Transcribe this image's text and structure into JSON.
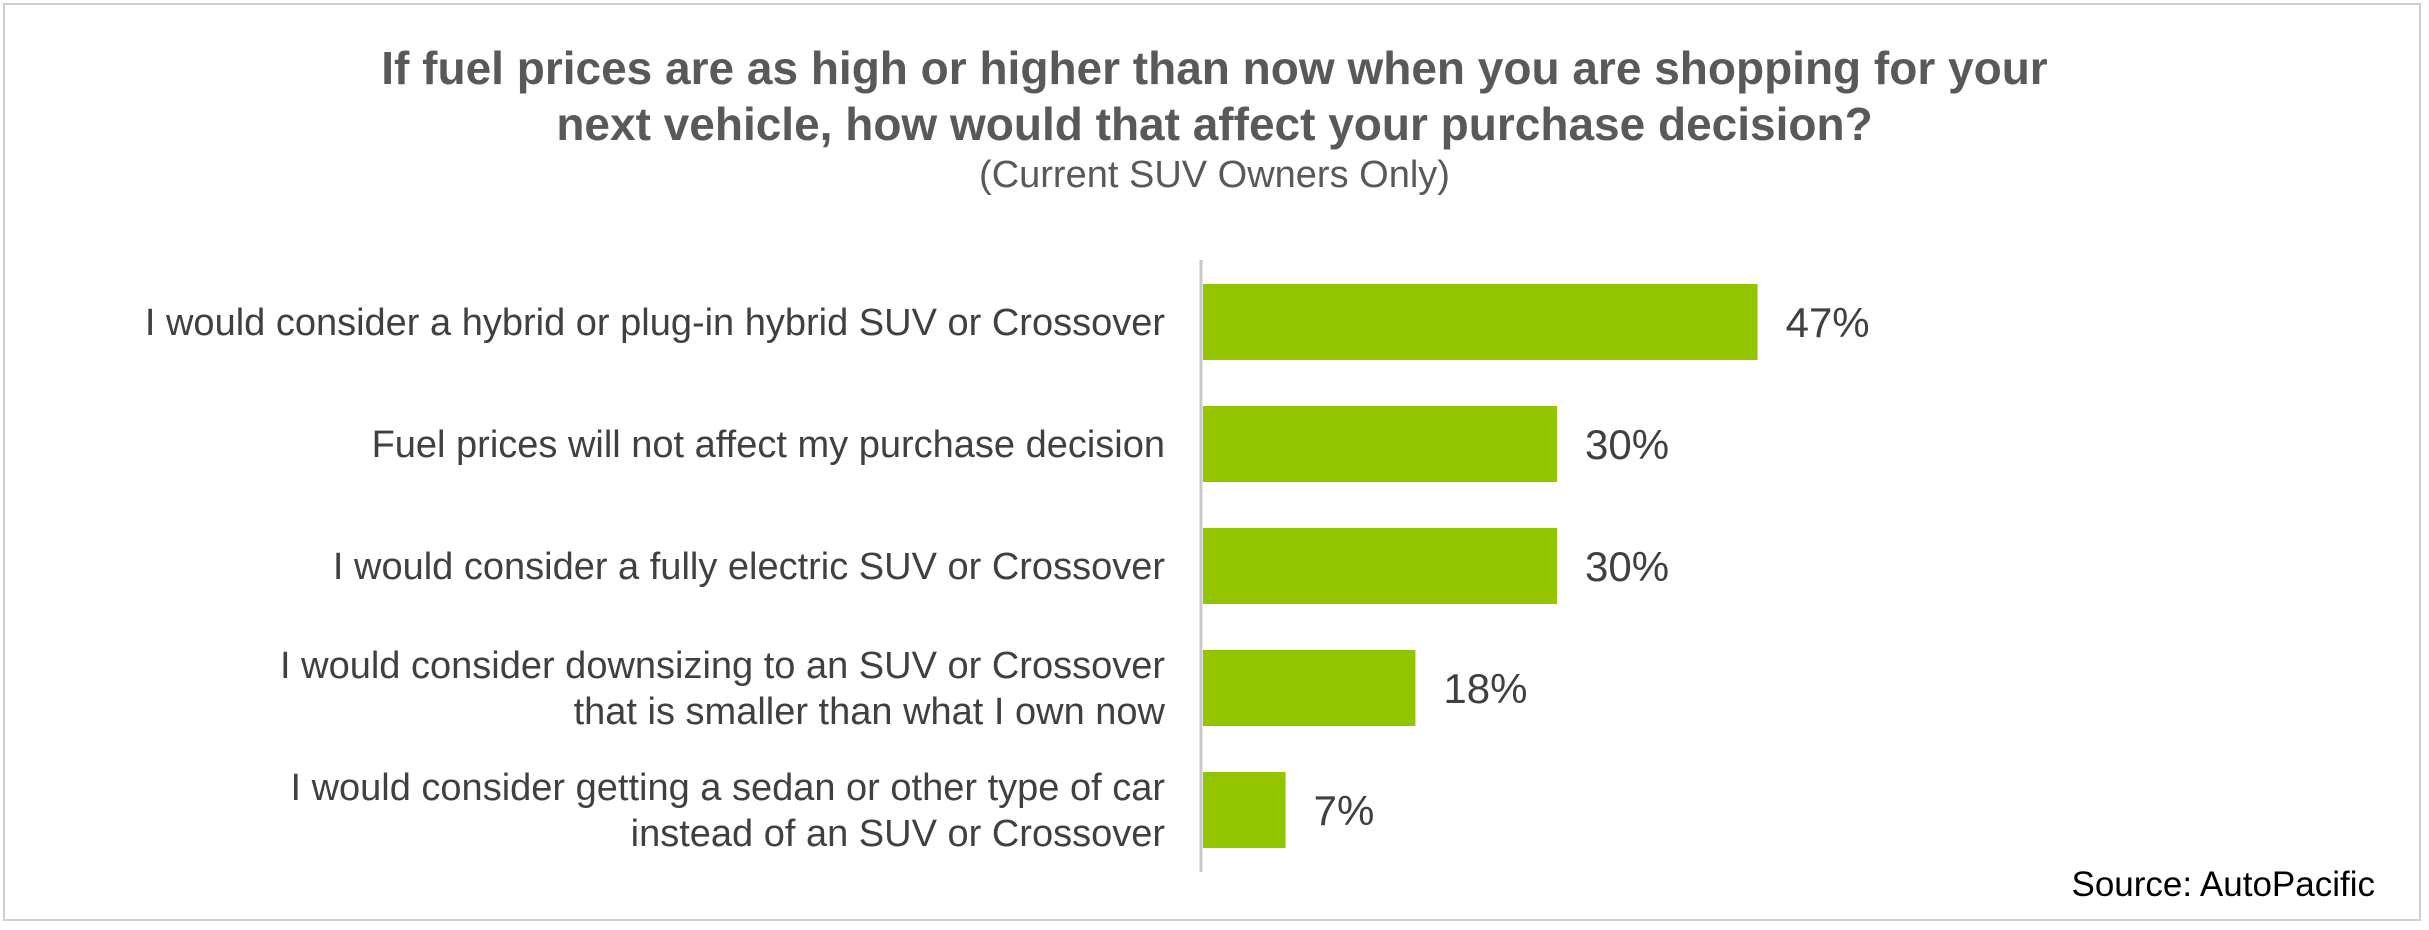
{
  "chart_data": {
    "type": "bar",
    "orientation": "horizontal",
    "title": "If fuel prices are as high or higher than now when you are shopping for your next vehicle, how would that affect your purchase decision?",
    "title_lines": [
      "If fuel prices are as high or higher than now when you are shopping for your",
      "next vehicle, how would that affect your purchase decision?"
    ],
    "subtitle": "(Current SUV Owners Only)",
    "categories": [
      [
        "I would consider a hybrid or plug-in hybrid SUV or Crossover"
      ],
      [
        "Fuel prices will not affect my purchase decision"
      ],
      [
        "I would consider a fully electric SUV or Crossover"
      ],
      [
        "I would consider downsizing to an SUV or Crossover",
        "that is smaller than what I own now"
      ],
      [
        "I would consider getting a sedan or other type of car",
        "instead of an SUV or Crossover"
      ]
    ],
    "values": [
      47,
      30,
      30,
      18,
      7
    ],
    "value_labels": [
      "47%",
      "30%",
      "30%",
      "18%",
      "7%"
    ],
    "xlim": [
      0,
      100
    ],
    "grid": false,
    "legend": "none",
    "bar_color": "#92c500",
    "source": "Source: AutoPacific"
  }
}
